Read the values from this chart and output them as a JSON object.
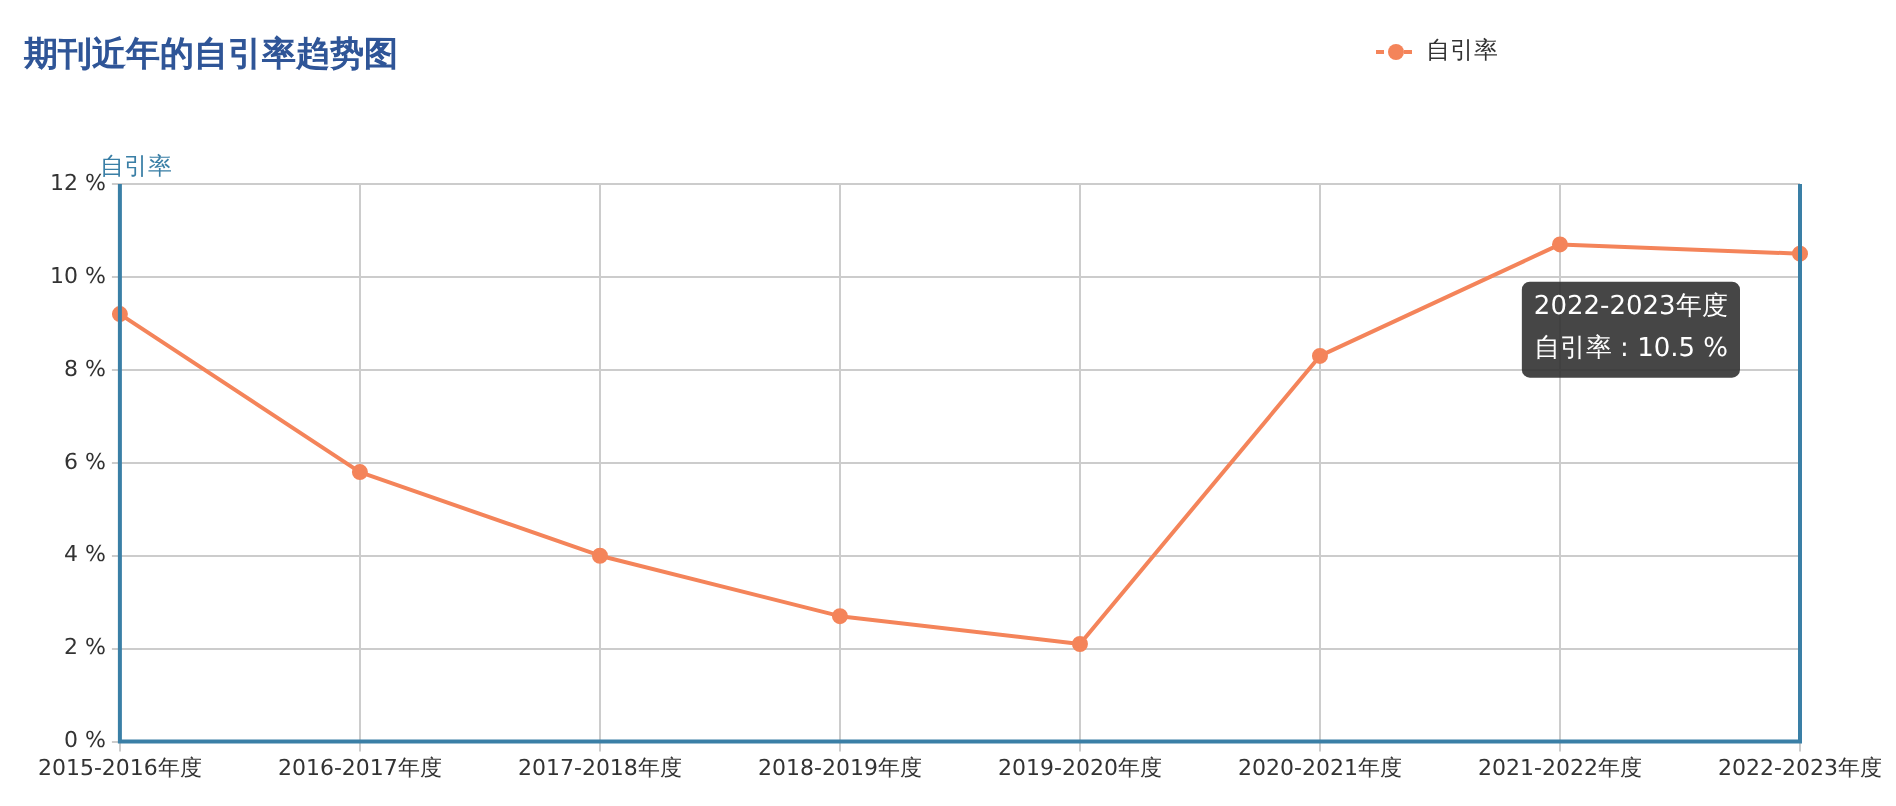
{
  "chart_data": {
    "type": "line",
    "title": "期刊近年的自引率趋势图",
    "ylabel": "自引率",
    "categories": [
      "2015-2016年度",
      "2016-2017年度",
      "2017-2018年度",
      "2018-2019年度",
      "2019-2020年度",
      "2020-2021年度",
      "2021-2022年度",
      "2022-2023年度"
    ],
    "series": [
      {
        "name": "自引率",
        "color": "#f4845a",
        "values": [
          9.2,
          5.8,
          4.0,
          2.7,
          2.1,
          8.3,
          10.7,
          10.5
        ]
      }
    ],
    "ylim": [
      0,
      12
    ],
    "yticks": [
      {
        "value": 0,
        "label": "0 %"
      },
      {
        "value": 2,
        "label": "2 %"
      },
      {
        "value": 4,
        "label": "4 %"
      },
      {
        "value": 6,
        "label": "6 %"
      },
      {
        "value": 8,
        "label": "8 %"
      },
      {
        "value": 10,
        "label": "10 %"
      },
      {
        "value": 12,
        "label": "12 %"
      }
    ],
    "annotations": [
      "2022-2023年度",
      "自引率 : 10.5 %"
    ],
    "grid": true,
    "legend": "top right",
    "marker": "circle",
    "line_style": "solid"
  }
}
